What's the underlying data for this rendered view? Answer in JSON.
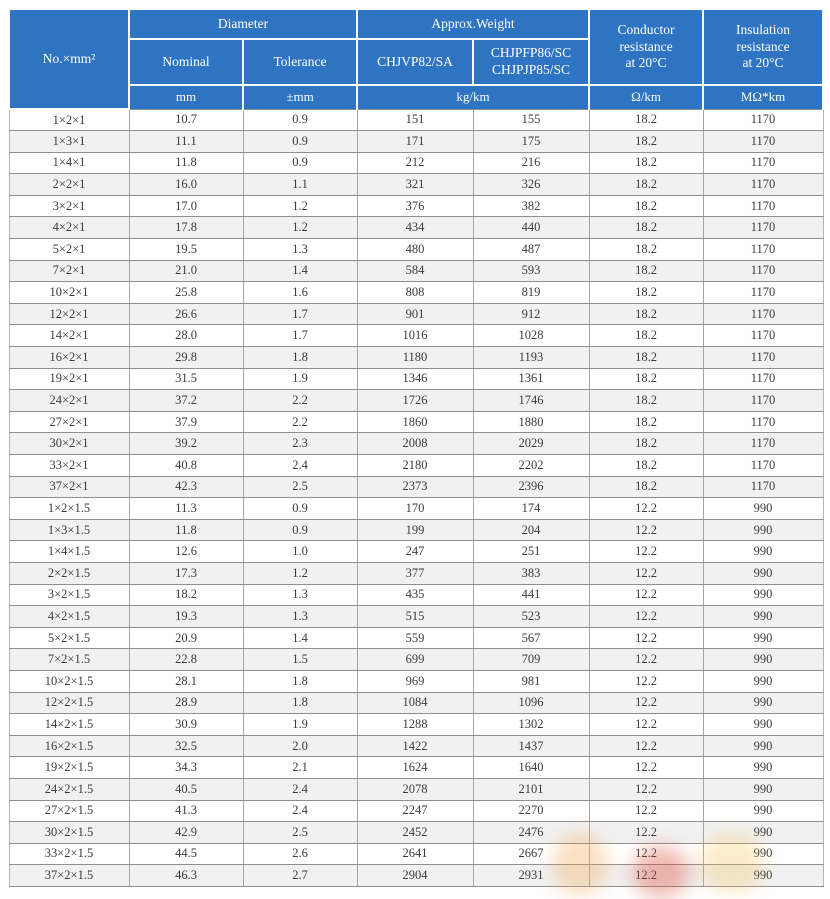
{
  "colors": {
    "header_blue": "#2e74c2",
    "header_text": "#ffffff",
    "row_alt": "#f1f1f2",
    "row_line": "#8f8f8f",
    "column_line": "#a5a5a5",
    "body_text": "#3b3b3b",
    "watermark_orange": "#f2a24b",
    "watermark_red": "#d94f35",
    "watermark_yellow": "#f3c04f"
  },
  "table": {
    "header": {
      "col_no": "No.×mm²",
      "diameter": "Diameter",
      "approx_weight": "Approx.Weight",
      "nominal": "Nominal",
      "tolerance": "Tolerance",
      "weight_model_1": "CHJVP82/SA",
      "weight_model_2": "CHJPFP86/SC\nCHJPJP85/SC",
      "conductor_resistance": "Conductor\nresistance\nat 20°C",
      "insulation_resistance": "Insulation\nresistance\nat 20°C",
      "unit_mm": "mm",
      "unit_tolerance_mm": "±mm",
      "unit_kg_km": "kg/km",
      "unit_ohm_km": "Ω/km",
      "unit_mohm_km": "MΩ*km"
    },
    "rows": [
      [
        "1×2×1",
        "10.7",
        "0.9",
        "151",
        "155",
        "18.2",
        "1170"
      ],
      [
        "1×3×1",
        "11.1",
        "0.9",
        "171",
        "175",
        "18.2",
        "1170"
      ],
      [
        "1×4×1",
        "11.8",
        "0.9",
        "212",
        "216",
        "18.2",
        "1170"
      ],
      [
        "2×2×1",
        "16.0",
        "1.1",
        "321",
        "326",
        "18.2",
        "1170"
      ],
      [
        "3×2×1",
        "17.0",
        "1.2",
        "376",
        "382",
        "18.2",
        "1170"
      ],
      [
        "4×2×1",
        "17.8",
        "1.2",
        "434",
        "440",
        "18.2",
        "1170"
      ],
      [
        "5×2×1",
        "19.5",
        "1.3",
        "480",
        "487",
        "18.2",
        "1170"
      ],
      [
        "7×2×1",
        "21.0",
        "1.4",
        "584",
        "593",
        "18.2",
        "1170"
      ],
      [
        "10×2×1",
        "25.8",
        "1.6",
        "808",
        "819",
        "18.2",
        "1170"
      ],
      [
        "12×2×1",
        "26.6",
        "1.7",
        "901",
        "912",
        "18.2",
        "1170"
      ],
      [
        "14×2×1",
        "28.0",
        "1.7",
        "1016",
        "1028",
        "18.2",
        "1170"
      ],
      [
        "16×2×1",
        "29.8",
        "1.8",
        "1180",
        "1193",
        "18.2",
        "1170"
      ],
      [
        "19×2×1",
        "31.5",
        "1.9",
        "1346",
        "1361",
        "18.2",
        "1170"
      ],
      [
        "24×2×1",
        "37.2",
        "2.2",
        "1726",
        "1746",
        "18.2",
        "1170"
      ],
      [
        "27×2×1",
        "37.9",
        "2.2",
        "1860",
        "1880",
        "18.2",
        "1170"
      ],
      [
        "30×2×1",
        "39.2",
        "2.3",
        "2008",
        "2029",
        "18.2",
        "1170"
      ],
      [
        "33×2×1",
        "40.8",
        "2.4",
        "2180",
        "2202",
        "18.2",
        "1170"
      ],
      [
        "37×2×1",
        "42.3",
        "2.5",
        "2373",
        "2396",
        "18.2",
        "1170"
      ],
      [
        "1×2×1.5",
        "11.3",
        "0.9",
        "170",
        "174",
        "12.2",
        "990"
      ],
      [
        "1×3×1.5",
        "11.8",
        "0.9",
        "199",
        "204",
        "12.2",
        "990"
      ],
      [
        "1×4×1.5",
        "12.6",
        "1.0",
        "247",
        "251",
        "12.2",
        "990"
      ],
      [
        "2×2×1.5",
        "17.3",
        "1.2",
        "377",
        "383",
        "12.2",
        "990"
      ],
      [
        "3×2×1.5",
        "18.2",
        "1.3",
        "435",
        "441",
        "12.2",
        "990"
      ],
      [
        "4×2×1.5",
        "19.3",
        "1.3",
        "515",
        "523",
        "12.2",
        "990"
      ],
      [
        "5×2×1.5",
        "20.9",
        "1.4",
        "559",
        "567",
        "12.2",
        "990"
      ],
      [
        "7×2×1.5",
        "22.8",
        "1.5",
        "699",
        "709",
        "12.2",
        "990"
      ],
      [
        "10×2×1.5",
        "28.1",
        "1.8",
        "969",
        "981",
        "12.2",
        "990"
      ],
      [
        "12×2×1.5",
        "28.9",
        "1.8",
        "1084",
        "1096",
        "12.2",
        "990"
      ],
      [
        "14×2×1.5",
        "30.9",
        "1.9",
        "1288",
        "1302",
        "12.2",
        "990"
      ],
      [
        "16×2×1.5",
        "32.5",
        "2.0",
        "1422",
        "1437",
        "12.2",
        "990"
      ],
      [
        "19×2×1.5",
        "34.3",
        "2.1",
        "1624",
        "1640",
        "12.2",
        "990"
      ],
      [
        "24×2×1.5",
        "40.5",
        "2.4",
        "2078",
        "2101",
        "12.2",
        "990"
      ],
      [
        "27×2×1.5",
        "41.3",
        "2.4",
        "2247",
        "2270",
        "12.2",
        "990"
      ],
      [
        "30×2×1.5",
        "42.9",
        "2.5",
        "2452",
        "2476",
        "12.2",
        "990"
      ],
      [
        "33×2×1.5",
        "44.5",
        "2.6",
        "2641",
        "2667",
        "12.2",
        "990"
      ],
      [
        "37×2×1.5",
        "46.3",
        "2.7",
        "2904",
        "2931",
        "12.2",
        "990"
      ]
    ]
  }
}
